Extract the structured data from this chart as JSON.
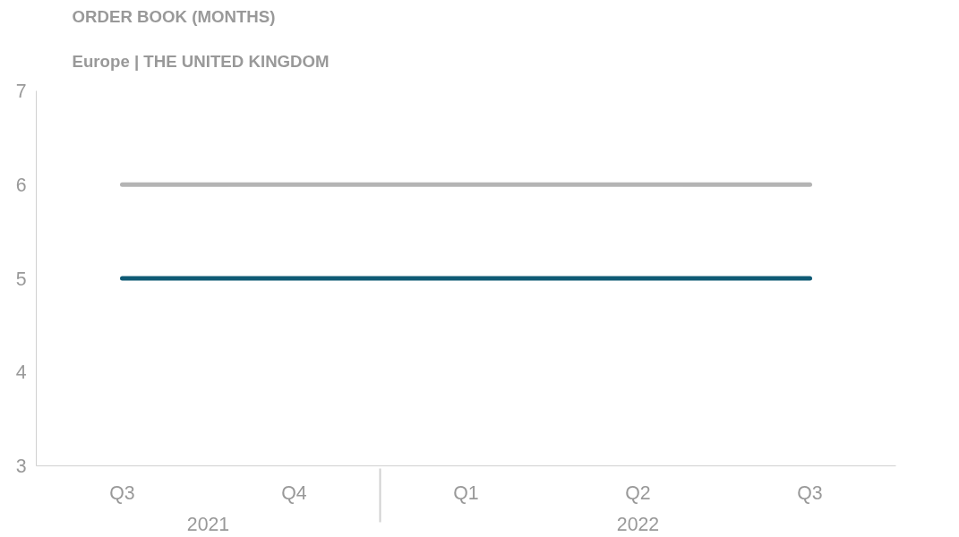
{
  "chart_data": {
    "type": "line",
    "title": "ORDER BOOK (MONTHS)",
    "subtitle": "Europe | THE UNITED KINGDOM",
    "categories": [
      "Q3",
      "Q4",
      "Q1",
      "Q2",
      "Q3"
    ],
    "annotations": [
      "2021",
      "2022"
    ],
    "series": [
      {
        "color": "#b4b4b4",
        "values": [
          6,
          6,
          6,
          6,
          6
        ]
      },
      {
        "color": "#0f5a75",
        "values": [
          5,
          5,
          5,
          5,
          5
        ]
      }
    ],
    "ylim": [
      3,
      7
    ],
    "yticks": [
      3,
      4,
      5,
      6,
      7
    ],
    "grid": false,
    "marker": "none",
    "line_style": "solid"
  }
}
